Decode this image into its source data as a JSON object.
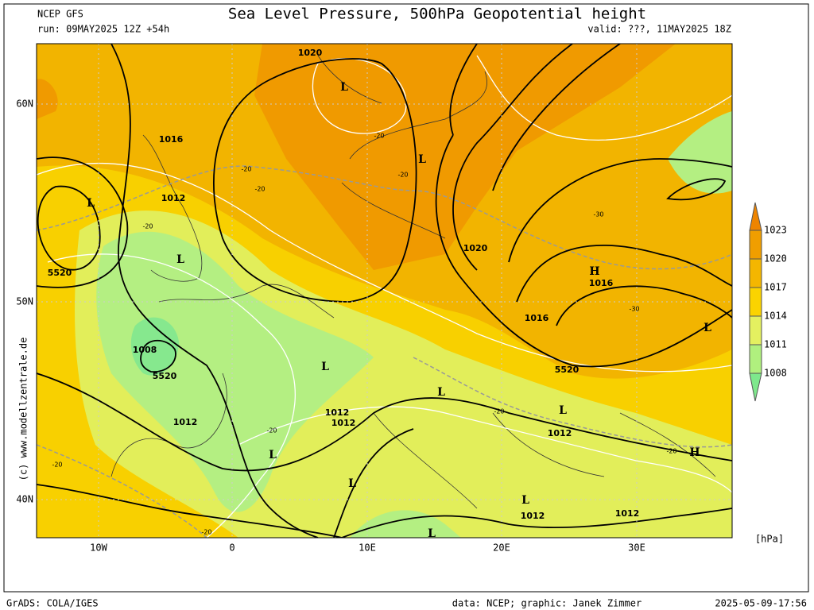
{
  "header": {
    "model": "NCEP GFS",
    "title": "Sea Level Pressure, 500hPa Geopotential height",
    "run": "run: 09MAY2025 12Z +54h",
    "valid": "valid: ???, 11MAY2025 18Z"
  },
  "map": {
    "lon_labels": [
      "10W",
      "0",
      "10E",
      "20E",
      "30E"
    ],
    "lat_labels": [
      "60N",
      "50N",
      "40N"
    ],
    "labels": [
      "1020",
      "L",
      "1016",
      "L",
      "1012",
      "L",
      "5520",
      "1008",
      "5520",
      "1012",
      "L",
      "1020",
      "H",
      "1016",
      "1016",
      "5520",
      "L",
      "L",
      "L",
      "1012",
      "1012",
      "L",
      "1012",
      "H",
      "L",
      "L",
      "L",
      "1012",
      "1012",
      "L",
      "-30",
      "-30",
      "-20",
      "-20",
      "-20",
      "-20",
      "-20",
      "-20",
      "-20",
      "-20",
      "-20",
      "-20"
    ]
  },
  "legend": {
    "levels": [
      1008,
      1011,
      1014,
      1017,
      1020,
      1023
    ],
    "unit": "[hPa]"
  },
  "credit": "(c) www.modellzentrale.de",
  "footer": {
    "left": "GrADS: COLA/IGES",
    "center": "data: NCEP; graphic: Janek Zimmer",
    "right": "2025-05-09-17:56"
  }
}
